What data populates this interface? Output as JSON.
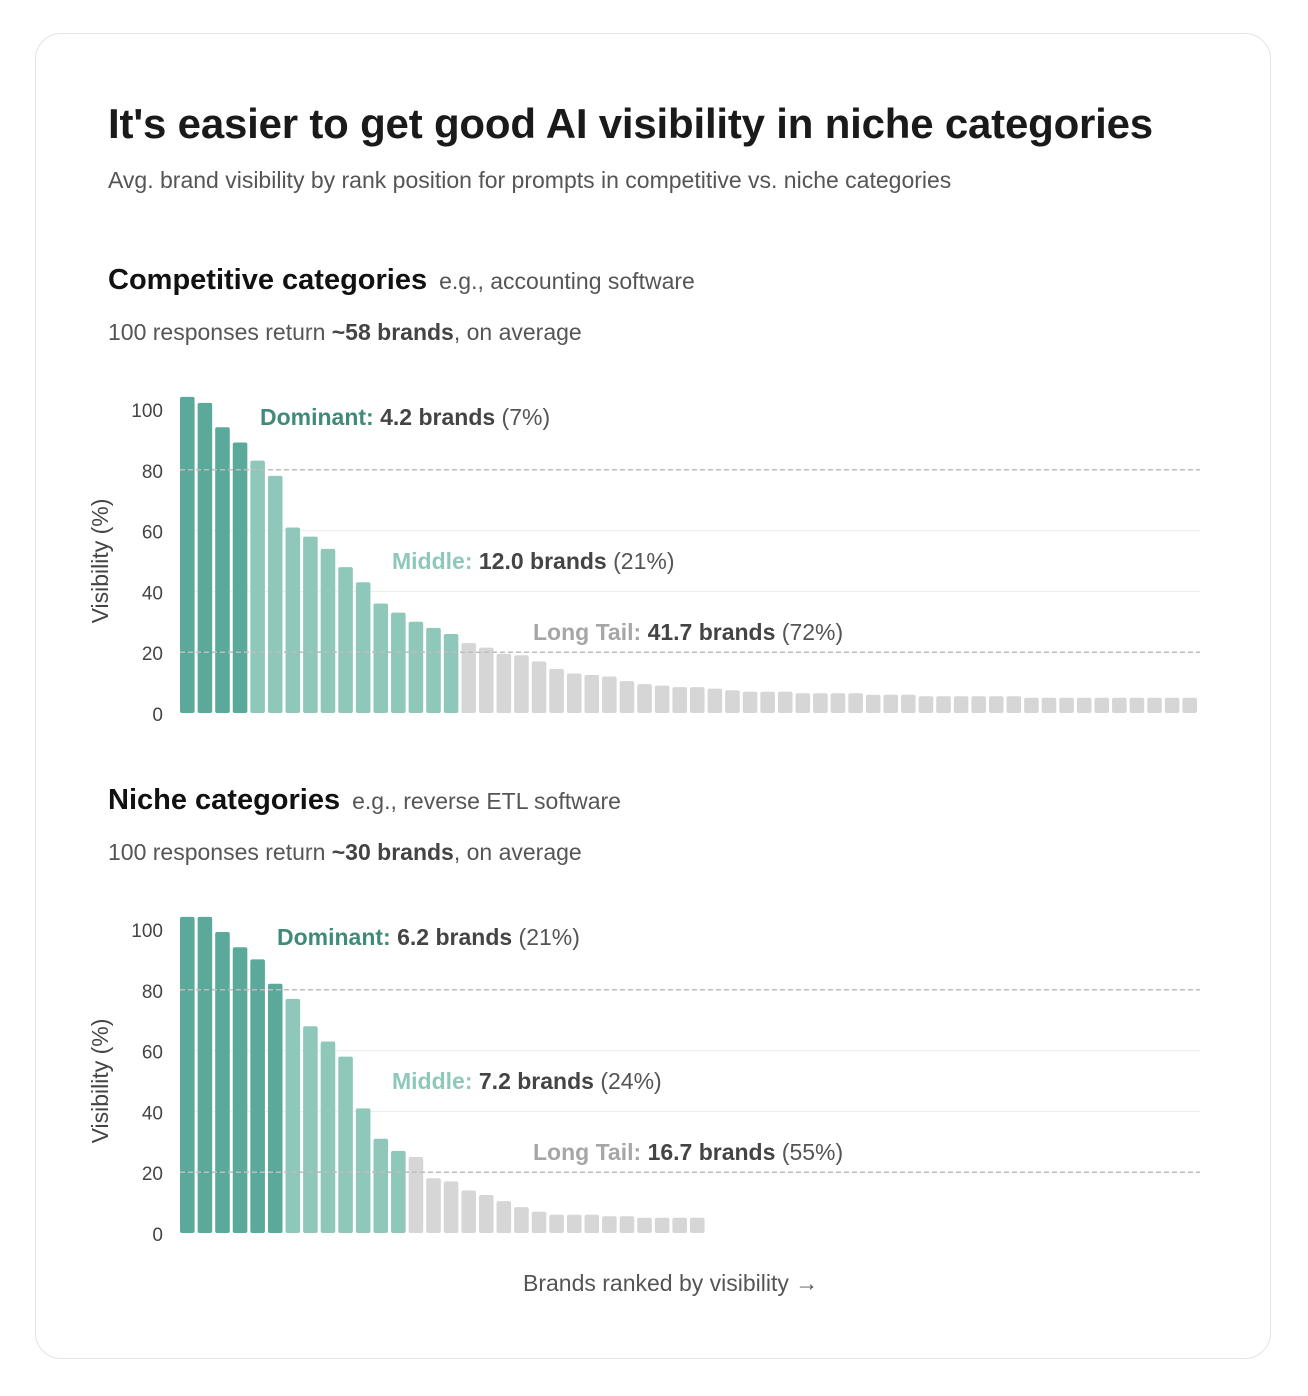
{
  "title": "It's easier to get good AI visibility in niche categories",
  "subtitle": "Avg. brand visibility by rank position for prompts in competitive vs. niche categories",
  "x_axis_label": "Brands ranked by visibility →",
  "colors": {
    "dominant": "#5ba99a",
    "middle": "#8fc8bb",
    "long_tail": "#d6d6d6",
    "dominant_label": "#3f8a7b",
    "middle_label": "#8fc8bb",
    "long_tail_label": "#a6a6a6",
    "grid_dashed": "#bdbdbd",
    "grid_solid": "#ececec"
  },
  "sections": [
    {
      "name": "Competitive categories",
      "example": "e.g., accounting software",
      "stat_prefix": "100 responses return ",
      "stat_bold": "~58 brands",
      "stat_suffix": ", on average"
    },
    {
      "name": "Niche categories",
      "example": "e.g., reverse ETL software",
      "stat_prefix": "100 responses return ",
      "stat_bold": "~30 brands",
      "stat_suffix": ", on average"
    }
  ],
  "chart_data": [
    {
      "type": "bar",
      "ylabel": "Visibility (%)",
      "xlabel": "Brands ranked by visibility →",
      "ylim": [
        0,
        100
      ],
      "yticks": [
        0,
        20,
        40,
        60,
        80,
        100
      ],
      "dashed_gridlines": [
        20,
        80
      ],
      "solid_gridlines": [
        40,
        60
      ],
      "slots": 58,
      "tiers": [
        {
          "key": "dominant",
          "name": "Dominant:",
          "value": "4.2 brands",
          "pct": "(7%)",
          "count": 4
        },
        {
          "key": "middle",
          "name": "Middle:",
          "value": "12.0 brands",
          "pct": "(21%)",
          "count": 12
        },
        {
          "key": "long_tail",
          "name": "Long Tail:",
          "value": "41.7 brands",
          "pct": "(72%)",
          "count": 42
        }
      ],
      "values": [
        100,
        98,
        90,
        85,
        79,
        74,
        57,
        54,
        50,
        44,
        39,
        32,
        29,
        26,
        24,
        22,
        19,
        17.5,
        15.5,
        15,
        13,
        10.5,
        9,
        8.5,
        8,
        6.5,
        5.5,
        5,
        4.5,
        4.5,
        4,
        3.5,
        3,
        3,
        3,
        2.5,
        2.5,
        2.5,
        2.5,
        2,
        2,
        2,
        1.5,
        1.5,
        1.5,
        1.5,
        1.5,
        1.5,
        1,
        1,
        1,
        1,
        1,
        1,
        1,
        1,
        1,
        1
      ]
    },
    {
      "type": "bar",
      "ylabel": "Visibility (%)",
      "xlabel": "Brands ranked by visibility →",
      "ylim": [
        0,
        100
      ],
      "yticks": [
        0,
        20,
        40,
        60,
        80,
        100
      ],
      "dashed_gridlines": [
        20,
        80
      ],
      "solid_gridlines": [
        40,
        60
      ],
      "slots": 58,
      "tiers": [
        {
          "key": "dominant",
          "name": "Dominant:",
          "value": "6.2 brands",
          "pct": "(21%)",
          "count": 6
        },
        {
          "key": "middle",
          "name": "Middle:",
          "value": "7.2 brands",
          "pct": "(24%)",
          "count": 7
        },
        {
          "key": "long_tail",
          "name": "Long Tail:",
          "value": "16.7 brands",
          "pct": "(55%)",
          "count": 17
        }
      ],
      "values": [
        100,
        100,
        95,
        90,
        86,
        78,
        73,
        64,
        59,
        54,
        37,
        27,
        23,
        21,
        14,
        13,
        10,
        8.5,
        6.5,
        4.5,
        3,
        2,
        2,
        2,
        1.5,
        1.5,
        1,
        1,
        1,
        1
      ]
    }
  ]
}
